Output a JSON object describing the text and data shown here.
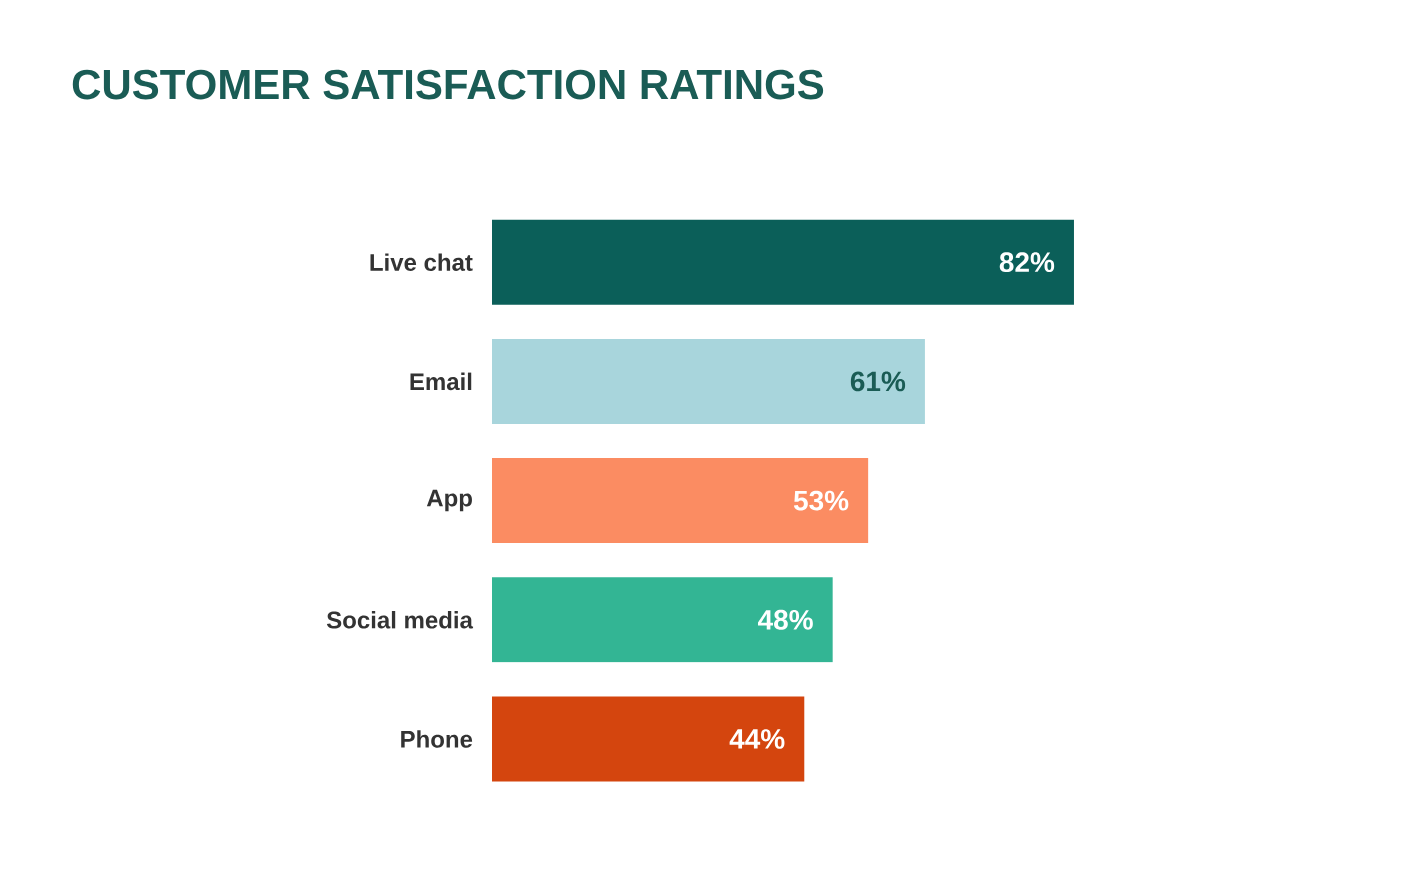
{
  "chart_data": {
    "type": "bar",
    "orientation": "horizontal",
    "title": "CUSTOMER SATISFACTION RATINGS",
    "categories": [
      "Live chat",
      "Email",
      "App",
      "Social media",
      "Phone"
    ],
    "values": [
      82,
      61,
      53,
      48,
      44
    ],
    "colors": [
      "#0b5f59",
      "#a8d5dc",
      "#fb8c62",
      "#33b594",
      "#d4450e"
    ],
    "value_labels": [
      "82%",
      "61%",
      "53%",
      "48%",
      "44%"
    ]
  }
}
